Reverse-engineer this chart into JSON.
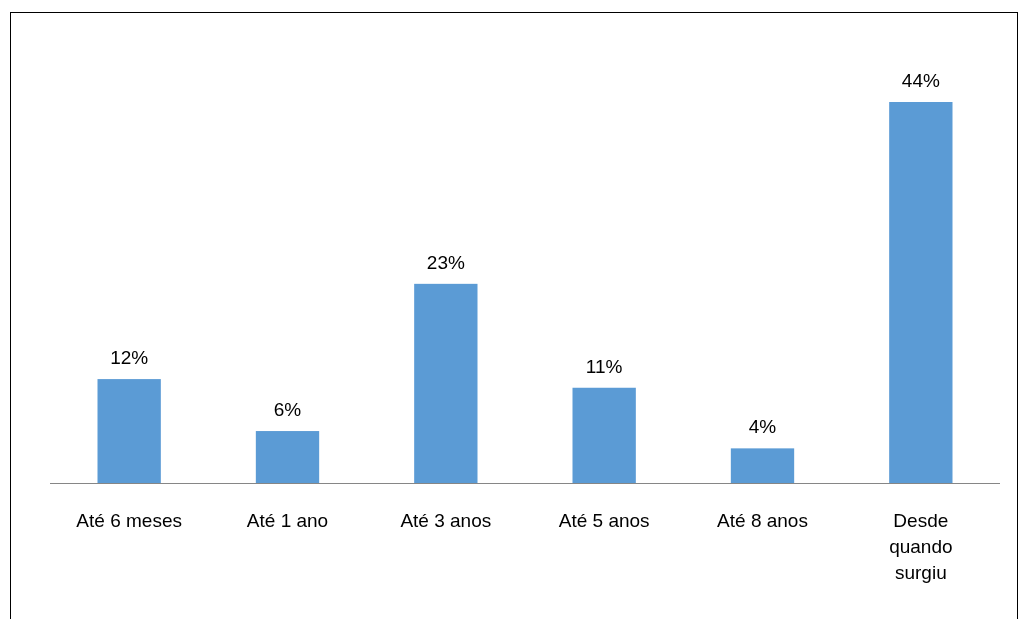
{
  "chart_data": {
    "type": "bar",
    "categories": [
      "Até 6 meses",
      "Até 1 ano",
      "Até 3 anos",
      "Até 5 anos",
      "Até 8 anos",
      "Desde quando surgiu"
    ],
    "values": [
      12,
      6,
      23,
      11,
      4,
      44
    ],
    "color": "#5b9bd5",
    "data_labels": true,
    "value_labels": [
      "12%",
      "6%",
      "23%",
      "11%",
      "4%",
      "44%"
    ]
  }
}
